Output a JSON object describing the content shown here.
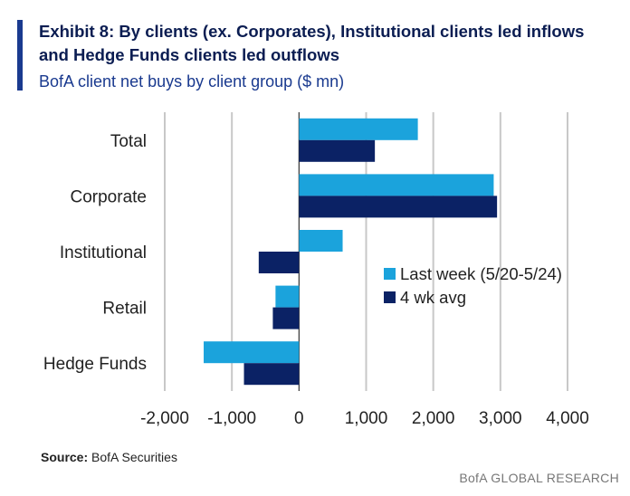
{
  "header": {
    "title": "Exhibit 8: By clients (ex. Corporates), Institutional clients led inflows and Hedge Funds clients led outflows",
    "subtitle": "BofA client net buys by client group ($ mn)"
  },
  "footer": {
    "source_label": "Source:",
    "source_text": "BofA Securities",
    "brand": "BofA GLOBAL RESEARCH"
  },
  "colors": {
    "accent": "#1a3a8f",
    "last_week": "#1ba3dc",
    "four_wk_avg": "#0b2265",
    "grid": "#c8c8c8"
  },
  "chart_data": {
    "type": "bar",
    "orientation": "horizontal",
    "categories": [
      "Total",
      "Corporate",
      "Institutional",
      "Retail",
      "Hedge Funds"
    ],
    "series": [
      {
        "name": "Last week (5/20-5/24)",
        "values": [
          1770,
          2900,
          650,
          -350,
          -1420
        ]
      },
      {
        "name": "4 wk avg",
        "values": [
          1130,
          2950,
          -600,
          -390,
          -820
        ]
      }
    ],
    "xlim": [
      -2000,
      4000
    ],
    "xticks": [
      "-2,000",
      "-1,000",
      "0",
      "1,000",
      "2,000",
      "3,000",
      "4,000"
    ],
    "xtick_values": [
      -2000,
      -1000,
      0,
      1000,
      2000,
      3000,
      4000
    ],
    "grid": "vertical",
    "legend_position": "center-right"
  }
}
